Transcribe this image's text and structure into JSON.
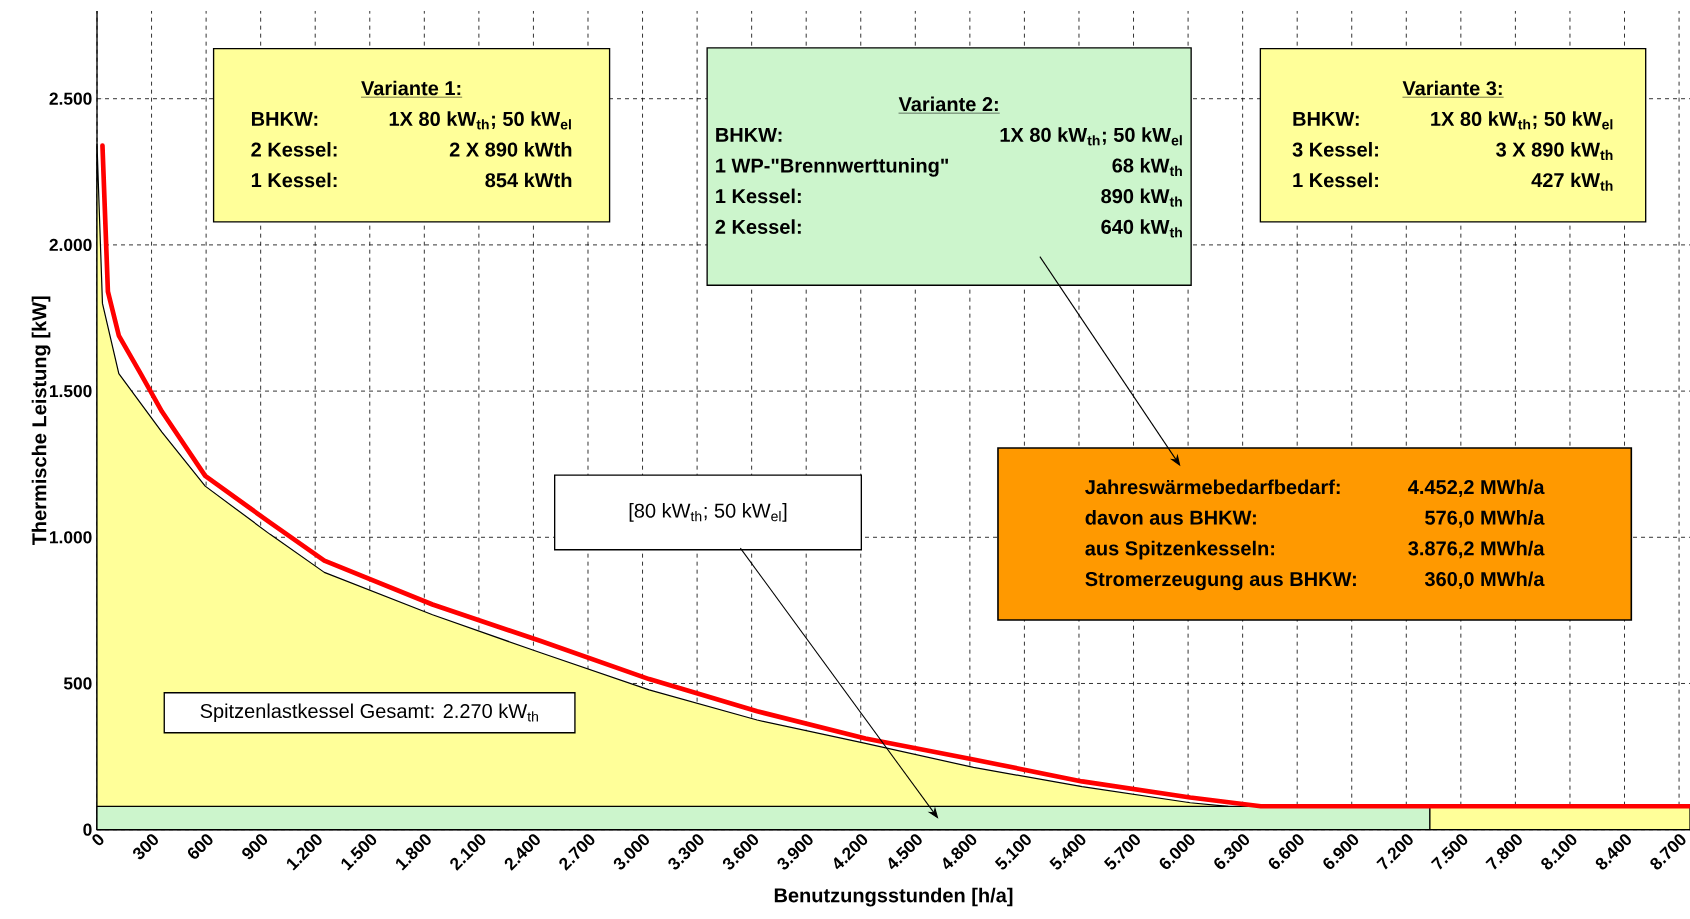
{
  "chart_data": {
    "type": "area",
    "xlabel": "Benutzungsstunden [h/a]",
    "ylabel": "Thermische Leistung [kW]",
    "xlim": [
      0,
      8760
    ],
    "ylim": [
      0,
      2800
    ],
    "xticks": [
      0,
      300,
      600,
      900,
      {
        "value": 1200,
        "label": "1.200"
      },
      {
        "value": 1500,
        "label": "1.500"
      },
      {
        "value": 1800,
        "label": "1.800"
      },
      {
        "value": 2100,
        "label": "2.100"
      },
      {
        "value": 2400,
        "label": "2.400"
      },
      {
        "value": 2700,
        "label": "2.700"
      },
      {
        "value": 3000,
        "label": "3.000"
      },
      {
        "value": 3300,
        "label": "3.300"
      },
      {
        "value": 3600,
        "label": "3.600"
      },
      {
        "value": 3900,
        "label": "3.900"
      },
      {
        "value": 4200,
        "label": "4.200"
      },
      {
        "value": 4500,
        "label": "4.500"
      },
      {
        "value": 4800,
        "label": "4.800"
      },
      {
        "value": 5100,
        "label": "5.100"
      },
      {
        "value": 5400,
        "label": "5.400"
      },
      {
        "value": 5700,
        "label": "5.700"
      },
      {
        "value": 6000,
        "label": "6.000"
      },
      {
        "value": 6300,
        "label": "6.300"
      },
      {
        "value": 6600,
        "label": "6.600"
      },
      {
        "value": 6900,
        "label": "6.900"
      },
      {
        "value": 7200,
        "label": "7.200"
      },
      {
        "value": 7500,
        "label": "7.500"
      },
      {
        "value": 7800,
        "label": "7.800"
      },
      {
        "value": 8100,
        "label": "8.100"
      },
      {
        "value": 8400,
        "label": "8.400"
      },
      {
        "value": 8700,
        "label": "8.700"
      }
    ],
    "yticks": [
      0,
      500,
      {
        "value": 1000,
        "label": "1.000"
      },
      {
        "value": 1500,
        "label": "1.500"
      },
      {
        "value": 2000,
        "label": "2.000"
      },
      {
        "value": 2500,
        "label": "2.500"
      }
    ],
    "grid": true,
    "series": [
      {
        "color": "#ffff99",
        "x": [
          0,
          30,
          120,
          357,
          595,
          952,
          1250,
          1845,
          2440,
          3036,
          3630,
          4226,
          4820,
          5417,
          6012,
          6220
        ],
        "values": [
          2345,
          1800,
          1560,
          1360,
          1175,
          1010,
          880,
          735,
          605,
          478,
          375,
          295,
          213,
          147,
          92,
          80
        ]
      },
      {
        "color": "#ccf5cc",
        "x": [
          0,
          7330
        ],
        "values": [
          80,
          80
        ]
      },
      {
        "color": "#ffff99",
        "x": [
          7330,
          8760
        ],
        "values": [
          80,
          80
        ]
      },
      {
        "type": "line",
        "color": "#ff0000",
        "x": [
          30,
          60,
          120,
          240,
          357,
          595,
          952,
          1250,
          1845,
          2440,
          3036,
          3630,
          4226,
          4820,
          5417,
          6012,
          6400,
          8760
        ],
        "values": [
          2340,
          1840,
          1690,
          1560,
          1430,
          1210,
          1050,
          920,
          770,
          645,
          515,
          405,
          312,
          240,
          165,
          110,
          80,
          80
        ]
      }
    ],
    "annotations": [
      "Variante 1:",
      "BHKW:",
      "1X 80 kW$_{th}$; 50 kW$_{el}$",
      "2 Kessel:",
      "2 X 890 kWth",
      "1 Kessel:",
      "854 kWth",
      "Variante 2:",
      "BHKW:",
      "1X 80 kW$_{th}$; 50 kW$_{el}$",
      "1 WP-\"Brennwerttuning\"",
      "68 kW$_{th}$",
      "1 Kessel:",
      "890 kW$_{th}$",
      "2 Kessel:",
      "640 kW$_{th}$",
      "Variante 3:",
      "BHKW:",
      "1X 80 kW$_{th}$; 50 kW$_{el}$",
      "3 Kessel:",
      "3 X 890 kW$_{th}$",
      "1 Kessel:",
      "427 kW$_{th}$",
      "Jahreswärmebedarfbedarf:",
      "4.452,2 MWh/a",
      "davon aus BHKW:",
      "576,0 MWh/a",
      "aus Spitzenkesseln:",
      "3.876,2 MWh/a",
      "Stromerzeugung aus BHKW:",
      "360,0 MWh/a",
      "[80 kW$_{th}$; 50 kW$_{el}$]",
      "Spitzenlastkessel Gesamt: 2.270 kW$_{th}$"
    ]
  }
}
